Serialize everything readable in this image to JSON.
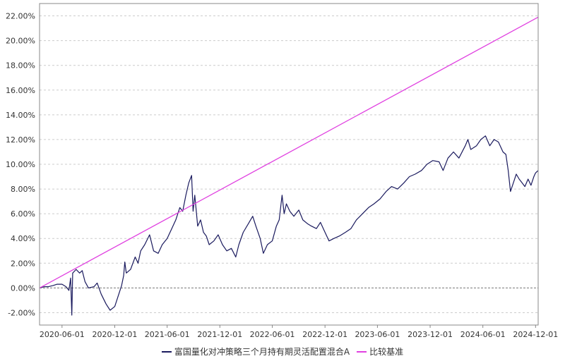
{
  "chart_data": {
    "type": "line",
    "title": "",
    "xlabel": "",
    "ylabel": "",
    "x_range": [
      "2020-03-15",
      "2024-12-10"
    ],
    "ylim": [
      -3.0,
      23.0
    ],
    "y_ticks": [
      -2,
      0,
      2,
      4,
      6,
      8,
      10,
      12,
      14,
      16,
      18,
      20,
      22
    ],
    "y_tick_labels": [
      "-2.00%",
      "0.00%",
      "2.00%",
      "4.00%",
      "6.00%",
      "8.00%",
      "10.00%",
      "12.00%",
      "14.00%",
      "16.00%",
      "18.00%",
      "20.00%",
      "22.00%"
    ],
    "x_ticks": [
      "2020-06-01",
      "2020-12-01",
      "2021-06-01",
      "2021-12-01",
      "2022-06-01",
      "2022-12-01",
      "2023-06-01",
      "2023-12-01",
      "2024-06-01",
      "2024-12-01"
    ],
    "grid": true,
    "legend_position": "bottom",
    "series": [
      {
        "name": "富国量化对冲策略三个月持有期灵活配置混合A",
        "color": "#1a1a5e",
        "points": [
          [
            "2020-03-15",
            0.0
          ],
          [
            "2020-04-01",
            0.1
          ],
          [
            "2020-04-15",
            0.1
          ],
          [
            "2020-05-01",
            0.2
          ],
          [
            "2020-05-15",
            0.3
          ],
          [
            "2020-06-01",
            0.3
          ],
          [
            "2020-06-15",
            0.1
          ],
          [
            "2020-06-25",
            -0.2
          ],
          [
            "2020-07-01",
            0.8
          ],
          [
            "2020-07-05",
            -2.2
          ],
          [
            "2020-07-08",
            1.2
          ],
          [
            "2020-07-20",
            1.5
          ],
          [
            "2020-08-01",
            1.2
          ],
          [
            "2020-08-10",
            1.4
          ],
          [
            "2020-08-20",
            0.5
          ],
          [
            "2020-09-01",
            0.0
          ],
          [
            "2020-09-20",
            0.1
          ],
          [
            "2020-10-01",
            0.4
          ],
          [
            "2020-10-15",
            -0.5
          ],
          [
            "2020-11-01",
            -1.3
          ],
          [
            "2020-11-15",
            -1.8
          ],
          [
            "2020-12-01",
            -1.5
          ],
          [
            "2020-12-15",
            -0.5
          ],
          [
            "2020-12-25",
            0.2
          ],
          [
            "2021-01-01",
            1.0
          ],
          [
            "2021-01-05",
            2.1
          ],
          [
            "2021-01-10",
            1.2
          ],
          [
            "2021-01-25",
            1.5
          ],
          [
            "2021-02-10",
            2.5
          ],
          [
            "2021-02-20",
            2.0
          ],
          [
            "2021-03-01",
            3.0
          ],
          [
            "2021-03-15",
            3.5
          ],
          [
            "2021-04-01",
            4.3
          ],
          [
            "2021-04-15",
            3.0
          ],
          [
            "2021-05-01",
            2.8
          ],
          [
            "2021-05-15",
            3.5
          ],
          [
            "2021-06-01",
            4.0
          ],
          [
            "2021-06-15",
            4.7
          ],
          [
            "2021-07-01",
            5.5
          ],
          [
            "2021-07-15",
            6.5
          ],
          [
            "2021-07-25",
            6.2
          ],
          [
            "2021-08-05",
            7.5
          ],
          [
            "2021-08-15",
            8.5
          ],
          [
            "2021-08-25",
            9.1
          ],
          [
            "2021-08-30",
            6.2
          ],
          [
            "2021-09-05",
            7.5
          ],
          [
            "2021-09-15",
            5.0
          ],
          [
            "2021-09-25",
            5.5
          ],
          [
            "2021-10-05",
            4.5
          ],
          [
            "2021-10-15",
            4.2
          ],
          [
            "2021-10-25",
            3.5
          ],
          [
            "2021-11-10",
            3.8
          ],
          [
            "2021-11-25",
            4.3
          ],
          [
            "2021-12-10",
            3.5
          ],
          [
            "2021-12-25",
            3.0
          ],
          [
            "2022-01-10",
            3.2
          ],
          [
            "2022-01-25",
            2.5
          ],
          [
            "2022-02-05",
            3.5
          ],
          [
            "2022-02-20",
            4.5
          ],
          [
            "2022-03-10",
            5.2
          ],
          [
            "2022-03-25",
            5.8
          ],
          [
            "2022-04-05",
            5.0
          ],
          [
            "2022-04-20",
            4.0
          ],
          [
            "2022-05-01",
            2.8
          ],
          [
            "2022-05-15",
            3.5
          ],
          [
            "2022-06-01",
            3.8
          ],
          [
            "2022-06-15",
            5.0
          ],
          [
            "2022-06-25",
            5.5
          ],
          [
            "2022-07-05",
            7.5
          ],
          [
            "2022-07-12",
            6.0
          ],
          [
            "2022-07-20",
            6.8
          ],
          [
            "2022-08-01",
            6.2
          ],
          [
            "2022-08-15",
            5.8
          ],
          [
            "2022-09-01",
            6.3
          ],
          [
            "2022-09-15",
            5.5
          ],
          [
            "2022-10-01",
            5.2
          ],
          [
            "2022-10-15",
            5.0
          ],
          [
            "2022-11-01",
            4.8
          ],
          [
            "2022-11-15",
            5.3
          ],
          [
            "2022-12-01",
            4.5
          ],
          [
            "2022-12-15",
            3.8
          ],
          [
            "2023-01-01",
            4.0
          ],
          [
            "2023-01-20",
            4.2
          ],
          [
            "2023-02-10",
            4.5
          ],
          [
            "2023-03-01",
            4.8
          ],
          [
            "2023-03-20",
            5.5
          ],
          [
            "2023-04-10",
            6.0
          ],
          [
            "2023-05-01",
            6.5
          ],
          [
            "2023-05-20",
            6.8
          ],
          [
            "2023-06-10",
            7.2
          ],
          [
            "2023-07-01",
            7.8
          ],
          [
            "2023-07-20",
            8.2
          ],
          [
            "2023-08-10",
            8.0
          ],
          [
            "2023-09-01",
            8.5
          ],
          [
            "2023-09-20",
            9.0
          ],
          [
            "2023-10-10",
            9.2
          ],
          [
            "2023-11-01",
            9.5
          ],
          [
            "2023-11-20",
            10.0
          ],
          [
            "2023-12-10",
            10.3
          ],
          [
            "2024-01-01",
            10.2
          ],
          [
            "2024-01-15",
            9.5
          ],
          [
            "2024-02-01",
            10.5
          ],
          [
            "2024-02-20",
            11.0
          ],
          [
            "2024-03-10",
            10.5
          ],
          [
            "2024-04-01",
            11.5
          ],
          [
            "2024-04-10",
            12.0
          ],
          [
            "2024-04-20",
            11.2
          ],
          [
            "2024-05-10",
            11.5
          ],
          [
            "2024-05-25",
            12.0
          ],
          [
            "2024-06-10",
            12.3
          ],
          [
            "2024-06-25",
            11.5
          ],
          [
            "2024-07-10",
            12.0
          ],
          [
            "2024-07-25",
            11.8
          ],
          [
            "2024-08-10",
            11.0
          ],
          [
            "2024-08-20",
            10.8
          ],
          [
            "2024-08-28",
            9.5
          ],
          [
            "2024-09-05",
            7.8
          ],
          [
            "2024-09-15",
            8.5
          ],
          [
            "2024-09-25",
            9.2
          ],
          [
            "2024-10-05",
            8.8
          ],
          [
            "2024-10-15",
            8.5
          ],
          [
            "2024-10-25",
            8.2
          ],
          [
            "2024-11-05",
            8.8
          ],
          [
            "2024-11-15",
            8.3
          ],
          [
            "2024-11-25",
            9.0
          ],
          [
            "2024-12-01",
            9.3
          ],
          [
            "2024-12-10",
            9.5
          ]
        ]
      },
      {
        "name": "比较基准",
        "color": "#e040e0",
        "points": [
          [
            "2020-03-15",
            0.0
          ],
          [
            "2024-12-10",
            21.9
          ]
        ]
      }
    ]
  }
}
